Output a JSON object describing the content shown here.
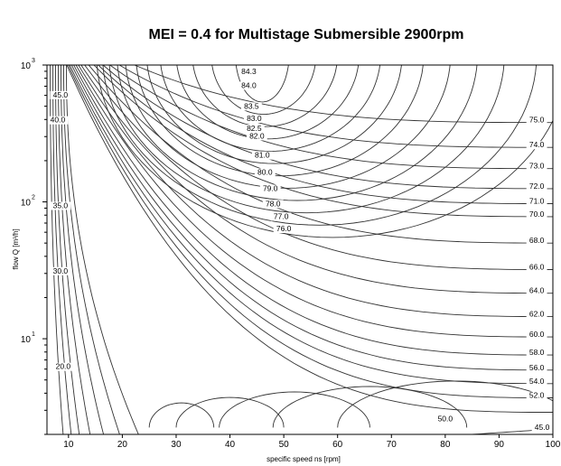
{
  "chart_data": {
    "type": "contour",
    "title": "MEI = 0.4 for Multistage Submersible 2900rpm",
    "xlabel": "specific speed ns [rpm]",
    "ylabel": "flow Q [m³/h]",
    "xlim": [
      6,
      100
    ],
    "ylim": [
      2,
      1000
    ],
    "y_scale": "log",
    "x_ticks": [
      10,
      20,
      30,
      40,
      50,
      60,
      70,
      80,
      90,
      100
    ],
    "y_ticks": [
      {
        "value": 10,
        "base": "10",
        "exp": "1"
      },
      {
        "value": 100,
        "base": "10",
        "exp": "2"
      },
      {
        "value": 1000,
        "base": "10",
        "exp": "3"
      }
    ],
    "grid": false,
    "contour_labels": [
      {
        "text": "84.3",
        "x": 43.5,
        "y": 860
      },
      {
        "text": "84.0",
        "x": 43.5,
        "y": 680
      },
      {
        "text": "83.5",
        "x": 44,
        "y": 480
      },
      {
        "text": "83.0",
        "x": 44.5,
        "y": 390
      },
      {
        "text": "82.5",
        "x": 44.5,
        "y": 330
      },
      {
        "text": "82.0",
        "x": 45,
        "y": 290
      },
      {
        "text": "81.0",
        "x": 46,
        "y": 210
      },
      {
        "text": "80.0",
        "x": 46.5,
        "y": 158
      },
      {
        "text": "79.0",
        "x": 47.5,
        "y": 120
      },
      {
        "text": "78.0",
        "x": 48,
        "y": 93
      },
      {
        "text": "77.0",
        "x": 49.5,
        "y": 75
      },
      {
        "text": "76.0",
        "x": 50,
        "y": 61
      },
      {
        "text": "75.0",
        "x": 97,
        "y": 380
      },
      {
        "text": "74.0",
        "x": 97,
        "y": 250
      },
      {
        "text": "73.0",
        "x": 97,
        "y": 175
      },
      {
        "text": "72.0",
        "x": 97,
        "y": 125
      },
      {
        "text": "71.0",
        "x": 97,
        "y": 97
      },
      {
        "text": "70.0",
        "x": 97,
        "y": 78
      },
      {
        "text": "68.0",
        "x": 97,
        "y": 50
      },
      {
        "text": "66.0",
        "x": 97,
        "y": 32
      },
      {
        "text": "64.0",
        "x": 97,
        "y": 21.5
      },
      {
        "text": "62.0",
        "x": 97,
        "y": 14.5
      },
      {
        "text": "60.0",
        "x": 97,
        "y": 10.3
      },
      {
        "text": "58.0",
        "x": 97,
        "y": 7.6
      },
      {
        "text": "56.0",
        "x": 97,
        "y": 5.9
      },
      {
        "text": "54.0",
        "x": 97,
        "y": 4.7
      },
      {
        "text": "52.0",
        "x": 97,
        "y": 3.7
      },
      {
        "text": "50.0",
        "x": 80,
        "y": 2.5
      },
      {
        "text": "45.0",
        "x": 98,
        "y": 2.15
      },
      {
        "text": "45.0",
        "x": 8.5,
        "y": 580
      },
      {
        "text": "40.0",
        "x": 8,
        "y": 380
      },
      {
        "text": "35.0",
        "x": 8.5,
        "y": 90
      },
      {
        "text": "30.0",
        "x": 8.5,
        "y": 30
      },
      {
        "text": "20.0",
        "x": 9,
        "y": 6
      }
    ],
    "left_family": [
      {
        "xb": 9
      },
      {
        "xb": 10.5
      },
      {
        "xb": 12
      },
      {
        "xb": 14
      },
      {
        "xb": 16.5
      },
      {
        "xb": 19.5
      },
      {
        "xb": 23
      }
    ],
    "ellipse_family": [
      {
        "xt": 41,
        "xr": 46
      },
      {
        "xt": 36.5,
        "xr": 51
      },
      {
        "xt": 33,
        "xr": 55
      },
      {
        "xt": 30,
        "xr": 59
      },
      {
        "xt": 27,
        "xr": 63
      },
      {
        "xt": 24.5,
        "xr": 67
      },
      {
        "xt": 22.5,
        "xr": 71
      },
      {
        "xt": 20.5,
        "xr": 76
      },
      {
        "xt": 19,
        "xr": 81
      },
      {
        "xt": 17.5,
        "xr": 86
      },
      {
        "xt": 16.3,
        "xr": 92
      },
      {
        "xt": 15.2,
        "xr": 98
      }
    ],
    "right_family": [
      {
        "xt": 14.3,
        "yr": 380
      },
      {
        "xt": 13.5,
        "yr": 250
      },
      {
        "xt": 12.8,
        "yr": 175
      },
      {
        "xt": 12.2,
        "yr": 125
      },
      {
        "xt": 11.7,
        "yr": 97
      },
      {
        "xt": 11.2,
        "yr": 78
      },
      {
        "xt": 10.7,
        "yr": 50
      },
      {
        "xt": 10.3,
        "yr": 32
      },
      {
        "xt": 9.9,
        "yr": 21.5
      },
      {
        "xt": 9.6,
        "yr": 14.5
      },
      {
        "xt": 9.3,
        "yr": 10.3
      },
      {
        "xt": 9.0,
        "yr": 7.6
      },
      {
        "xt": 8.7,
        "yr": 5.9
      },
      {
        "xt": 8.4,
        "yr": 4.7
      },
      {
        "xt": 8.2,
        "yr": 3.7
      },
      {
        "xt": 8.0,
        "yr": 2.9
      }
    ],
    "bottom_family": [
      {
        "xb": 27
      },
      {
        "xb": 32
      },
      {
        "xb": 40
      },
      {
        "xb": 50
      },
      {
        "xb": 62
      }
    ],
    "bottom_right_curve": {
      "x0": 85,
      "y1": 2.2
    }
  }
}
